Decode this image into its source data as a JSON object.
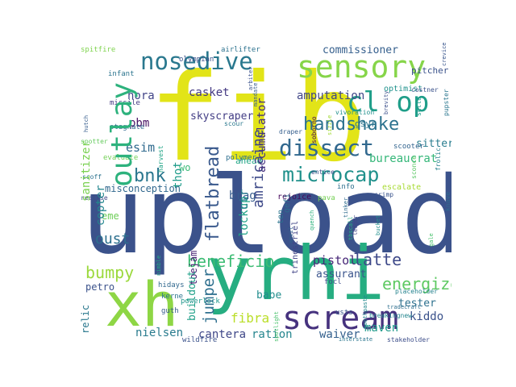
{
  "cloud": {
    "words": [
      {
        "text": "upload",
        "color": "#3b528b"
      },
      {
        "text": "fib",
        "color": "#e2e418"
      },
      {
        "text": "yrhi",
        "color": "#26ad81"
      },
      {
        "text": "xh",
        "color": "#8ed645"
      },
      {
        "text": "scream",
        "color": "#46327e"
      },
      {
        "text": "sensory",
        "color": "#86d549"
      },
      {
        "text": "nosedive",
        "color": "#2a788e"
      },
      {
        "text": "outlay",
        "color": "#2db27d"
      },
      {
        "text": "cl op",
        "color": "#1f9e89"
      },
      {
        "text": "dissect",
        "color": "#31688e"
      },
      {
        "text": "handshake",
        "color": "#2c728e"
      },
      {
        "text": "microcap",
        "color": "#21918c"
      },
      {
        "text": "flatbread",
        "color": "#38588c"
      },
      {
        "text": "amricaine",
        "color": "#3e4a89"
      },
      {
        "text": "bnk",
        "color": "#2a768e"
      },
      {
        "text": "beneficio",
        "color": "#3dbc74"
      },
      {
        "text": "energize",
        "color": "#5ec962"
      },
      {
        "text": "latte",
        "color": "#3e4989"
      },
      {
        "text": "bumpy",
        "color": "#9bd93c"
      },
      {
        "text": "jumper",
        "color": "#2e6f8e"
      },
      {
        "text": "oust",
        "color": "#2d708e"
      },
      {
        "text": "fibra",
        "color": "#bade28"
      },
      {
        "text": "accumulator",
        "color": "#46307e"
      },
      {
        "text": "amputation",
        "color": "#404688"
      },
      {
        "text": "commissioner",
        "color": "#355f8d"
      },
      {
        "text": "bureaucrat",
        "color": "#35b779"
      },
      {
        "text": "skyscraper",
        "color": "#433e85"
      },
      {
        "text": "sanitizer",
        "color": "#7ad151"
      },
      {
        "text": "copter",
        "color": "#24878e"
      },
      {
        "text": "casket",
        "color": "#443983"
      },
      {
        "text": "esim",
        "color": "#306a8e"
      },
      {
        "text": "hora",
        "color": "#414487"
      },
      {
        "text": "pbm",
        "color": "#471063"
      },
      {
        "text": "brag",
        "color": "#375b8d"
      },
      {
        "text": "lockup",
        "color": "#1fa287"
      },
      {
        "text": "ctr",
        "color": "#287d8e"
      },
      {
        "text": "thot",
        "color": "#1e9b8a"
      },
      {
        "text": "pistol",
        "color": "#482878"
      },
      {
        "text": "assurant",
        "color": "#3a548c"
      },
      {
        "text": "tester",
        "color": "#2d708e"
      },
      {
        "text": "kiddo",
        "color": "#3b528b"
      },
      {
        "text": "maven",
        "color": "#1f9a8a"
      },
      {
        "text": "waiver",
        "color": "#34608d"
      },
      {
        "text": "ration",
        "color": "#25858e"
      },
      {
        "text": "cantera",
        "color": "#3f4788"
      },
      {
        "text": "nielsen",
        "color": "#297b8e"
      },
      {
        "text": "relic",
        "color": "#2a788e"
      },
      {
        "text": "babe",
        "color": "#228d8d"
      },
      {
        "text": "eme",
        "color": "#6ece58"
      },
      {
        "text": "toejam",
        "color": "#482374"
      },
      {
        "text": "misconception",
        "color": "#31688e"
      },
      {
        "text": "buildout",
        "color": "#1fa088"
      },
      {
        "text": "sitter",
        "color": "#287c8e"
      },
      {
        "text": "optimist",
        "color": "#20928c"
      },
      {
        "text": "pitcher",
        "color": "#3b528b"
      },
      {
        "text": "escalate",
        "color": "#a8db34"
      },
      {
        "text": "soborno",
        "color": "#440154"
      },
      {
        "text": "rejoice",
        "color": "#46085c"
      },
      {
        "text": "ten",
        "color": "#2b748e"
      },
      {
        "text": "gefi",
        "color": "#2e6e8e"
      },
      {
        "text": "trinestriel",
        "color": "#414487"
      },
      {
        "text": "ahead",
        "color": "#21a685"
      },
      {
        "text": "wo",
        "color": "#3aba76"
      },
      {
        "text": "gsyr",
        "color": "#2b748e"
      },
      {
        "text": "petro",
        "color": "#3b528b"
      },
      {
        "text": "info",
        "color": "#2d708e"
      },
      {
        "text": "airlifter",
        "color": "#2c728e"
      },
      {
        "text": "spitfire",
        "color": "#7fd34e"
      },
      {
        "text": "infant",
        "color": "#2b748e"
      },
      {
        "text": "missile",
        "color": "#443a83"
      },
      {
        "text": "olympian",
        "color": "#3b528b"
      },
      {
        "text": "stagnate",
        "color": "#31688e"
      },
      {
        "text": "hidays",
        "color": "#31688e"
      },
      {
        "text": "pava",
        "color": "#75d054"
      },
      {
        "text": "focl",
        "color": "#3e4c8a"
      },
      {
        "text": "usts",
        "color": "#39558c"
      },
      {
        "text": "scooter",
        "color": "#32648e"
      },
      {
        "text": "powerlock",
        "color": "#1f968b"
      },
      {
        "text": "wildfire",
        "color": "#3b528b"
      },
      {
        "text": "guth",
        "color": "#375b8d"
      },
      {
        "text": "kerne",
        "color": "#2b748e"
      },
      {
        "text": "vivoration",
        "color": "#21908d"
      },
      {
        "text": "scour",
        "color": "#2a788e"
      },
      {
        "text": "draper",
        "color": "#355e8d"
      },
      {
        "text": "entice",
        "color": "#3d4d8a"
      },
      {
        "text": "evaluate",
        "color": "#73d056"
      },
      {
        "text": "polymer",
        "color": "#2e6e8e"
      },
      {
        "text": "harvest",
        "color": "#20a486"
      },
      {
        "text": "sconce",
        "color": "#5ac864"
      },
      {
        "text": "mandate",
        "color": "#365d8d"
      },
      {
        "text": "toothpaste",
        "color": "#23898e"
      },
      {
        "text": "tbscall",
        "color": "#27ad81"
      },
      {
        "text": "spotter",
        "color": "#65cb5e"
      },
      {
        "text": "realise",
        "color": "#3f4788"
      },
      {
        "text": "scoff",
        "color": "#2c738e"
      },
      {
        "text": "crimp",
        "color": "#3a548c"
      },
      {
        "text": "setta",
        "color": "#1e9b8a"
      },
      {
        "text": "pupster",
        "color": "#2a768e"
      },
      {
        "text": "crevice",
        "color": "#39568c"
      },
      {
        "text": "knave",
        "color": "#2f6c8e"
      },
      {
        "text": "bucket",
        "color": "#218f8d"
      },
      {
        "text": "arbiter",
        "color": "#3b528b"
      },
      {
        "text": "quench",
        "color": "#2db27d"
      },
      {
        "text": "ledger",
        "color": "#404688"
      },
      {
        "text": "frolic",
        "color": "#26828e"
      },
      {
        "text": "sizzle",
        "color": "#a2da37"
      },
      {
        "text": "anvil",
        "color": "#33638d"
      },
      {
        "text": "gale",
        "color": "#48c16e"
      },
      {
        "text": "tinker",
        "color": "#2f6b8e"
      },
      {
        "text": "brevity",
        "color": "#3c4f8a"
      },
      {
        "text": "nimble",
        "color": "#22a785"
      },
      {
        "text": "hutch",
        "color": "#365c8d"
      },
      {
        "text": "placeholder",
        "color": "#25838e"
      },
      {
        "text": "costner",
        "color": "#3b528b"
      },
      {
        "text": "interstate",
        "color": "#2a768e"
      },
      {
        "text": "stakeholder",
        "color": "#3d4e8a"
      },
      {
        "text": "breakingnew",
        "color": "#24868e"
      },
      {
        "text": "tradecraft",
        "color": "#2e6e8e"
      },
      {
        "text": "spotlight",
        "color": "#4ac16d"
      }
    ]
  }
}
